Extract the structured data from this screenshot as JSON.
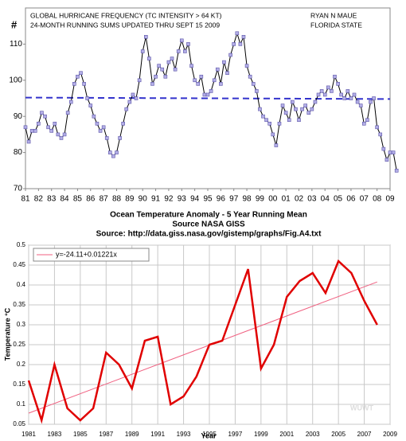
{
  "chart_data": [
    {
      "type": "line",
      "title": "GLOBAL HURRICANE FREQUENCY (TC INTENSITY > 64 KT)",
      "subtitle": "24-MONTH RUNNING SUMS UPDATED THRU SEPT 15 2009",
      "author": "RYAN N MAUE",
      "affiliation": "FLORIDA STATE",
      "ylabel": "#",
      "x": [
        1981,
        1981.25,
        1981.5,
        1981.75,
        1982,
        1982.25,
        1982.5,
        1982.75,
        1983,
        1983.25,
        1983.5,
        1983.75,
        1984,
        1984.25,
        1984.5,
        1984.75,
        1985,
        1985.25,
        1985.5,
        1985.75,
        1986,
        1986.25,
        1986.5,
        1986.75,
        1987,
        1987.25,
        1987.5,
        1987.75,
        1988,
        1988.25,
        1988.5,
        1988.75,
        1989,
        1989.25,
        1989.5,
        1989.75,
        1990,
        1990.25,
        1990.5,
        1990.75,
        1991,
        1991.25,
        1991.5,
        1991.75,
        1992,
        1992.25,
        1992.5,
        1992.75,
        1993,
        1993.25,
        1993.5,
        1993.75,
        1994,
        1994.25,
        1994.5,
        1994.75,
        1995,
        1995.25,
        1995.5,
        1995.75,
        1996,
        1996.25,
        1996.5,
        1996.75,
        1997,
        1997.25,
        1997.5,
        1997.75,
        1998,
        1998.25,
        1998.5,
        1998.75,
        1999,
        1999.25,
        1999.5,
        1999.75,
        2000,
        2000.25,
        2000.5,
        2000.75,
        2001,
        2001.25,
        2001.5,
        2001.75,
        2002,
        2002.25,
        2002.5,
        2002.75,
        2003,
        2003.25,
        2003.5,
        2003.75,
        2004,
        2004.25,
        2004.5,
        2004.75,
        2005,
        2005.25,
        2005.5,
        2005.75,
        2006,
        2006.25,
        2006.5,
        2006.75,
        2007,
        2007.25,
        2007.5,
        2007.75,
        2008,
        2008.25,
        2008.5,
        2008.75,
        2009,
        2009.25,
        2009.5
      ],
      "series": [
        {
          "color": "#000000",
          "marker_color": "#b3aee6",
          "values": [
            87,
            83,
            86,
            86,
            88,
            91,
            90,
            87,
            86,
            88,
            85,
            84,
            85,
            91,
            94,
            99,
            101,
            102,
            99,
            95,
            93,
            90,
            88,
            86,
            87,
            84,
            80,
            79,
            80,
            84,
            88,
            92,
            94,
            96,
            95,
            100,
            108,
            112,
            106,
            99,
            101,
            104,
            103,
            101,
            105,
            106,
            103,
            108,
            111,
            108,
            110,
            104,
            100,
            99,
            101,
            96,
            96,
            97,
            100,
            103,
            99,
            105,
            102,
            107,
            110,
            113,
            110,
            112,
            104,
            101,
            99,
            97,
            92,
            90,
            89,
            88,
            85,
            82,
            88,
            93,
            91,
            89,
            94,
            92,
            89,
            92,
            93,
            91,
            92,
            94,
            96,
            97,
            96,
            98,
            97,
            101,
            99,
            96,
            95,
            97,
            95,
            96,
            94,
            93,
            88,
            89,
            94,
            95,
            87,
            85,
            81,
            78,
            80,
            80,
            75
          ]
        }
      ],
      "reference_line": {
        "values": [
          95.2,
          94.8
        ],
        "color": "#3333cc"
      },
      "xlim": [
        1981,
        2009
      ],
      "xticks": [
        {
          "value": 1981,
          "label": "81"
        },
        {
          "value": 1982,
          "label": "82"
        },
        {
          "value": 1983,
          "label": "83"
        },
        {
          "value": 1984,
          "label": "84"
        },
        {
          "value": 1985,
          "label": "85"
        },
        {
          "value": 1986,
          "label": "86"
        },
        {
          "value": 1987,
          "label": "87"
        },
        {
          "value": 1988,
          "label": "88"
        },
        {
          "value": 1989,
          "label": "89"
        },
        {
          "value": 1990,
          "label": "90"
        },
        {
          "value": 1991,
          "label": "91"
        },
        {
          "value": 1992,
          "label": "92"
        },
        {
          "value": 1993,
          "label": "93"
        },
        {
          "value": 1994,
          "label": "94"
        },
        {
          "value": 1995,
          "label": "95"
        },
        {
          "value": 1996,
          "label": "96"
        },
        {
          "value": 1997,
          "label": "97"
        },
        {
          "value": 1998,
          "label": "98"
        },
        {
          "value": 1999,
          "label": "99"
        },
        {
          "value": 2000,
          "label": "00"
        },
        {
          "value": 2001,
          "label": "01"
        },
        {
          "value": 2002,
          "label": "02"
        },
        {
          "value": 2003,
          "label": "03"
        },
        {
          "value": 2004,
          "label": "04"
        },
        {
          "value": 2005,
          "label": "05"
        },
        {
          "value": 2006,
          "label": "06"
        },
        {
          "value": 2007,
          "label": "07"
        },
        {
          "value": 2008,
          "label": "08"
        },
        {
          "value": 2009,
          "label": "09"
        }
      ],
      "ylim": [
        70,
        120
      ],
      "yticks": [
        70,
        80,
        90,
        100,
        110
      ],
      "grid": false
    },
    {
      "type": "line",
      "title": "Ocean Temperature Anomaly - 5 Year Running Mean",
      "subtitle": "Source NASA GISS",
      "source": "Source: http://data.giss.nasa.gov/gistemp/graphs/Fig.A4.txt",
      "xlabel": "Year",
      "ylabel": "Temperature °C",
      "watermark": "WUWT",
      "x": [
        1981,
        1982,
        1983,
        1984,
        1985,
        1986,
        1987,
        1988,
        1989,
        1990,
        1991,
        1992,
        1993,
        1994,
        1995,
        1996,
        1997,
        1998,
        1999,
        2000,
        2001,
        2002,
        2003,
        2004,
        2005,
        2006,
        2007,
        2008
      ],
      "series": [
        {
          "color": "#e00000",
          "values": [
            0.16,
            0.06,
            0.2,
            0.09,
            0.06,
            0.09,
            0.23,
            0.2,
            0.14,
            0.26,
            0.27,
            0.1,
            0.12,
            0.17,
            0.25,
            0.26,
            0.35,
            0.44,
            0.19,
            0.25,
            0.37,
            0.41,
            0.43,
            0.38,
            0.46,
            0.43,
            0.36,
            0.3
          ]
        }
      ],
      "trendline": {
        "label": "y=-24.11+0.01221x",
        "intercept": -24.11,
        "slope": 0.01221,
        "color": "#f06080"
      },
      "xlim": [
        1981,
        2009
      ],
      "xticks": [
        1981,
        1983,
        1985,
        1987,
        1989,
        1991,
        1993,
        1995,
        1997,
        1999,
        2001,
        2003,
        2005,
        2007,
        2009
      ],
      "ylim": [
        0.05,
        0.5
      ],
      "yticks": [
        0.05,
        0.1,
        0.15,
        0.2,
        0.25,
        0.3,
        0.35,
        0.4,
        0.45,
        0.5
      ],
      "grid": true
    }
  ]
}
